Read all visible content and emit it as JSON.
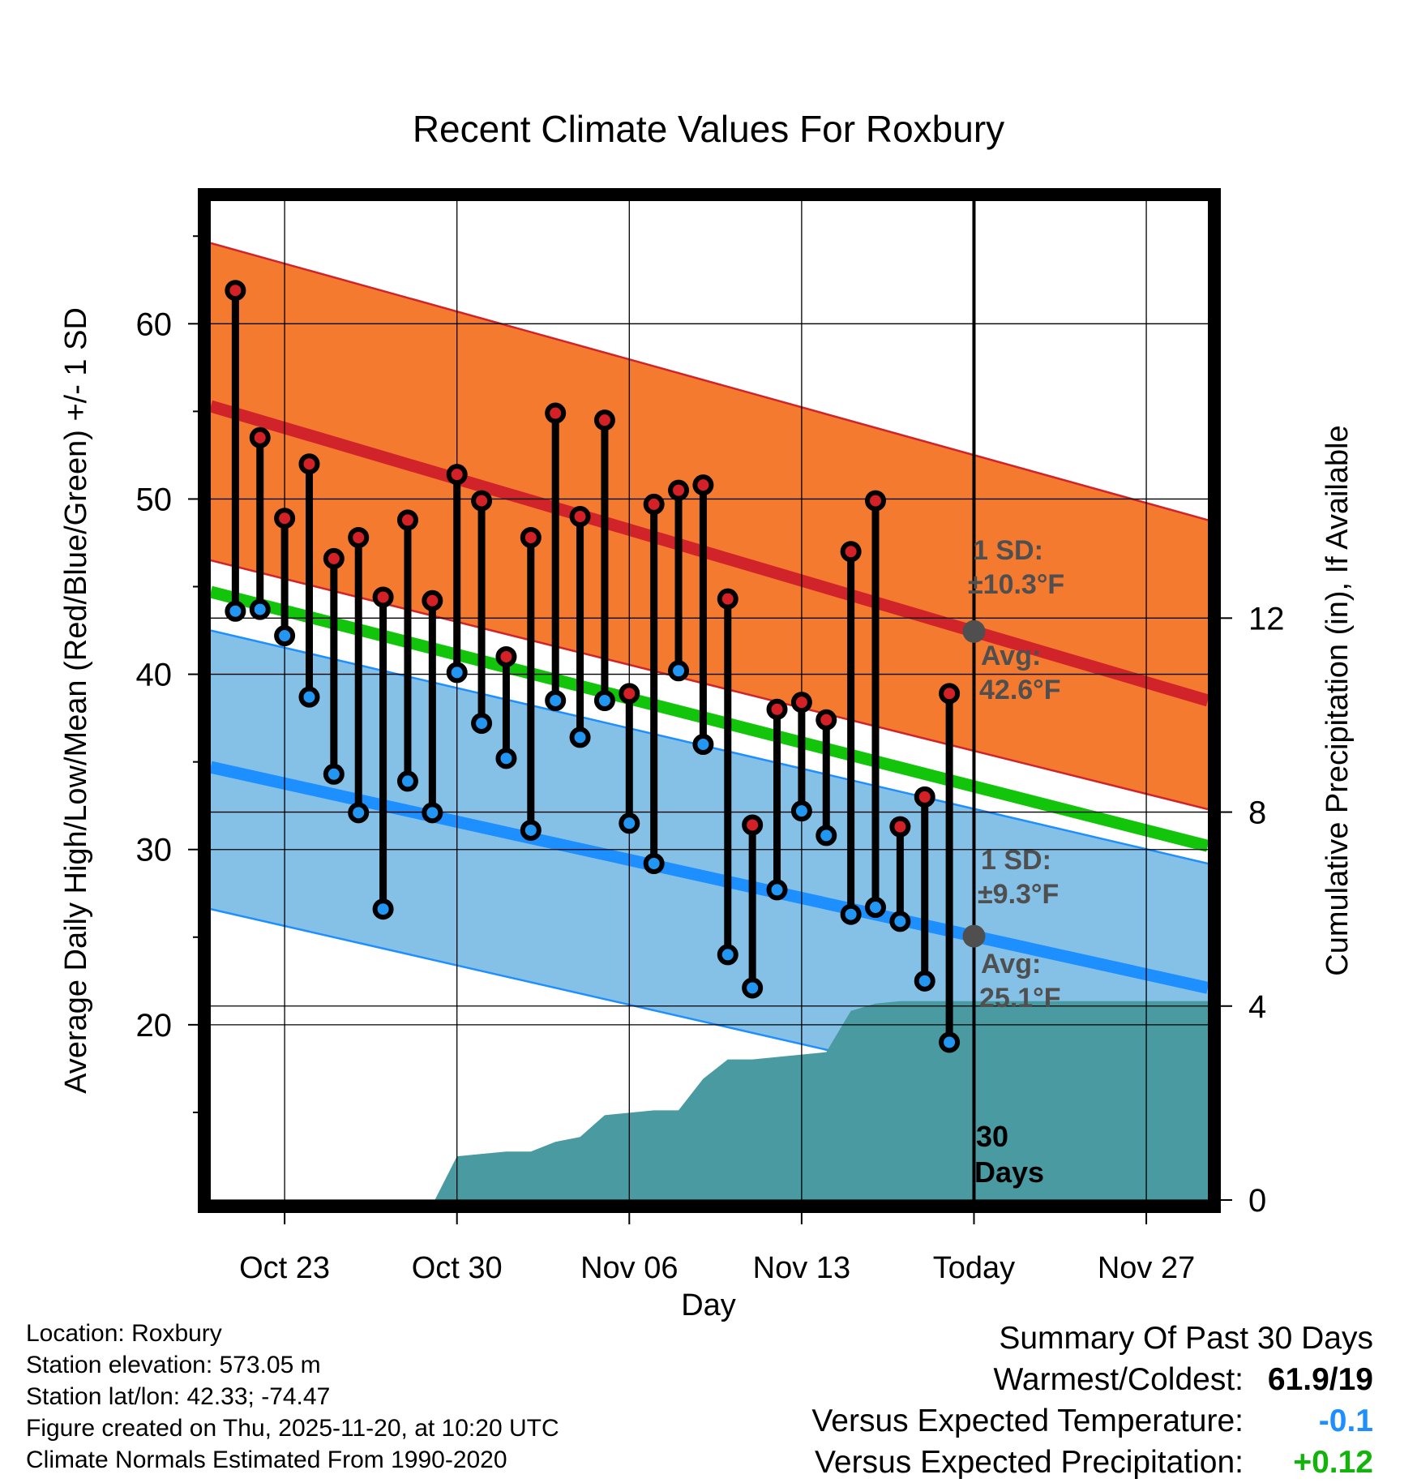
{
  "chart_data": {
    "type": "line",
    "title": "Recent Climate Values For Roxbury",
    "xlabel": "Day",
    "ylabel": "Average Daily High/Low/Mean (Red/Blue/Green) +/- 1 SD",
    "y2label": "Cumulative Precipitation (in), If Available",
    "ylim": [
      10,
      67
    ],
    "y2lim": [
      0,
      20.6
    ],
    "xlim": [
      0,
      40.5
    ],
    "x_ticks": [
      {
        "day": 3,
        "label": "Oct 23"
      },
      {
        "day": 10,
        "label": "Oct 30"
      },
      {
        "day": 17,
        "label": "Nov 06"
      },
      {
        "day": 24,
        "label": "Nov 13"
      },
      {
        "day": 31,
        "label": "Today"
      },
      {
        "day": 38,
        "label": "Nov 27"
      }
    ],
    "y_ticks": [
      20,
      30,
      40,
      50,
      60
    ],
    "y2_ticks": [
      0,
      4,
      8,
      12
    ],
    "today_x": 31,
    "normals": {
      "high_avg": [
        55.3,
        38.5
      ],
      "high_upper": [
        64.6,
        48.8
      ],
      "high_lower": [
        46.5,
        32.3
      ],
      "low_avg": [
        34.7,
        22.1
      ],
      "low_upper": [
        42.5,
        29.2
      ],
      "low_lower": [
        26.6,
        13.6
      ],
      "mean_avg": [
        44.7,
        30.2
      ]
    },
    "daily": {
      "x": [
        1,
        2,
        3,
        4,
        5,
        6,
        7,
        8,
        9,
        10,
        11,
        12,
        13,
        14,
        15,
        16,
        17,
        18,
        19,
        20,
        21,
        22,
        23,
        24,
        25,
        26,
        27,
        28,
        29,
        30
      ],
      "highs": [
        61.9,
        53.5,
        48.9,
        52.0,
        46.6,
        47.8,
        44.4,
        48.8,
        44.2,
        51.4,
        49.9,
        41.0,
        47.8,
        54.9,
        49.0,
        54.5,
        38.9,
        49.7,
        50.5,
        50.8,
        44.3,
        31.4,
        38.0,
        38.4,
        37.4,
        47.0,
        49.9,
        31.3,
        33.0,
        38.9
      ],
      "lows": [
        43.6,
        43.7,
        42.2,
        38.7,
        34.3,
        32.1,
        26.6,
        33.9,
        32.1,
        40.1,
        37.2,
        35.2,
        31.1,
        38.5,
        36.4,
        38.5,
        31.5,
        29.2,
        40.2,
        36.0,
        24.0,
        22.1,
        27.7,
        32.2,
        30.8,
        26.3,
        26.7,
        25.9,
        22.5,
        19.0
      ]
    },
    "precip": {
      "x": [
        9.1,
        10,
        11,
        12,
        13,
        14,
        15,
        16,
        17,
        18,
        19,
        20,
        21,
        22,
        23,
        24,
        25,
        26,
        27,
        28,
        29,
        30,
        31,
        32,
        34,
        36,
        38,
        40.5
      ],
      "values": [
        0.0,
        0.9,
        0.95,
        1.0,
        1.0,
        1.2,
        1.3,
        1.75,
        1.8,
        1.85,
        1.85,
        2.5,
        2.9,
        2.9,
        2.95,
        3.0,
        3.05,
        3.9,
        4.05,
        4.1,
        4.1,
        4.1,
        4.1,
        4.1,
        4.1,
        4.1,
        4.1,
        4.1
      ]
    },
    "annotations": {
      "high_sd_title": "1 SD:",
      "high_sd_value": "±10.3°F",
      "high_avg_title": "Avg:",
      "high_avg_value": "42.6°F",
      "low_sd_title": "1 SD:",
      "low_sd_value": "±9.3°F",
      "low_avg_title": "Avg:",
      "low_avg_value": "25.1°F",
      "days_num": "30",
      "days_word": "Days"
    },
    "colors": {
      "high_band": "#f47a30",
      "high_line": "#d1232a",
      "low_band": "#85c1e6",
      "low_line": "#1e8fff",
      "mean_line": "#12c50a",
      "divergence": "#8f1216",
      "precip": "#4a9aa2",
      "high_dot": "#d42027",
      "low_dot": "#2196f3",
      "annotation": "#4f4f4f"
    }
  },
  "info": {
    "location": "Location: Roxbury",
    "elevation": "Station elevation: 573.05 m",
    "latlon": "Station lat/lon: 42.33; -74.47",
    "created": "Figure created on Thu, 2025-11-20, at 10:20 UTC",
    "normals": "Climate Normals Estimated From 1990-2020"
  },
  "summary": {
    "title": "Summary Of Past 30 Days",
    "warm_cold_label": "Warmest/Coldest:",
    "warm_cold_value": "61.9/19",
    "temp_label": "Versus Expected Temperature:",
    "temp_value": "-0.1",
    "temp_color": "#1e8fff",
    "precip_label": "Versus Expected Precipitation:",
    "precip_value": "+0.12",
    "precip_color": "#12b30a"
  }
}
